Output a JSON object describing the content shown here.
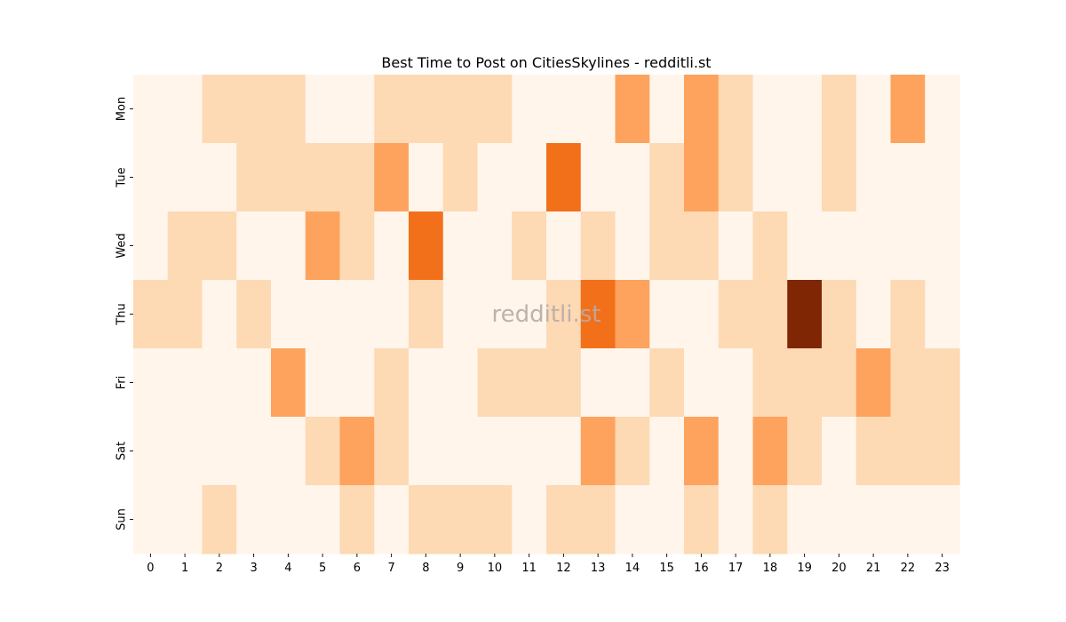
{
  "chart_data": {
    "type": "heatmap",
    "title": "Best Time to Post on CitiesSkylines - redditli.st",
    "watermark": "redditli.st",
    "x": [
      "0",
      "1",
      "2",
      "3",
      "4",
      "5",
      "6",
      "7",
      "8",
      "9",
      "10",
      "11",
      "12",
      "13",
      "14",
      "15",
      "16",
      "17",
      "18",
      "19",
      "20",
      "21",
      "22",
      "23"
    ],
    "y": [
      "Mon",
      "Tue",
      "Wed",
      "Thu",
      "Fri",
      "Sat",
      "Sun"
    ],
    "values": [
      [
        0,
        0,
        1,
        1,
        1,
        0,
        0,
        1,
        1,
        1,
        1,
        0,
        0,
        0,
        2,
        0,
        2,
        1,
        0,
        0,
        1,
        0,
        2,
        0
      ],
      [
        0,
        0,
        0,
        1,
        1,
        1,
        1,
        2,
        0,
        1,
        0,
        0,
        4,
        0,
        0,
        1,
        2,
        1,
        0,
        0,
        1,
        0,
        0,
        0
      ],
      [
        0,
        1,
        1,
        0,
        0,
        2,
        1,
        0,
        4,
        0,
        0,
        1,
        0,
        1,
        0,
        1,
        1,
        0,
        1,
        0,
        0,
        0,
        0,
        0
      ],
      [
        1,
        1,
        0,
        1,
        0,
        0,
        0,
        0,
        1,
        0,
        0,
        0,
        1,
        4,
        2,
        0,
        0,
        1,
        1,
        7,
        1,
        0,
        1,
        0
      ],
      [
        0,
        0,
        0,
        0,
        2,
        0,
        0,
        1,
        0,
        0,
        1,
        1,
        1,
        0,
        0,
        1,
        0,
        0,
        1,
        1,
        1,
        2,
        1,
        1
      ],
      [
        0,
        0,
        0,
        0,
        0,
        1,
        2,
        1,
        0,
        0,
        0,
        0,
        0,
        2,
        1,
        0,
        2,
        0,
        2,
        1,
        0,
        1,
        1,
        1
      ],
      [
        0,
        0,
        1,
        0,
        0,
        0,
        1,
        0,
        1,
        1,
        1,
        0,
        1,
        1,
        0,
        0,
        1,
        0,
        1,
        0,
        0,
        0,
        0,
        0
      ]
    ],
    "colormap": [
      "#fff5eb",
      "#fdd9b4",
      "#fda35e",
      "#f3701b",
      "#7f2704"
    ],
    "vmin": 0,
    "vmax": 7,
    "grid": false,
    "legend": "none"
  }
}
